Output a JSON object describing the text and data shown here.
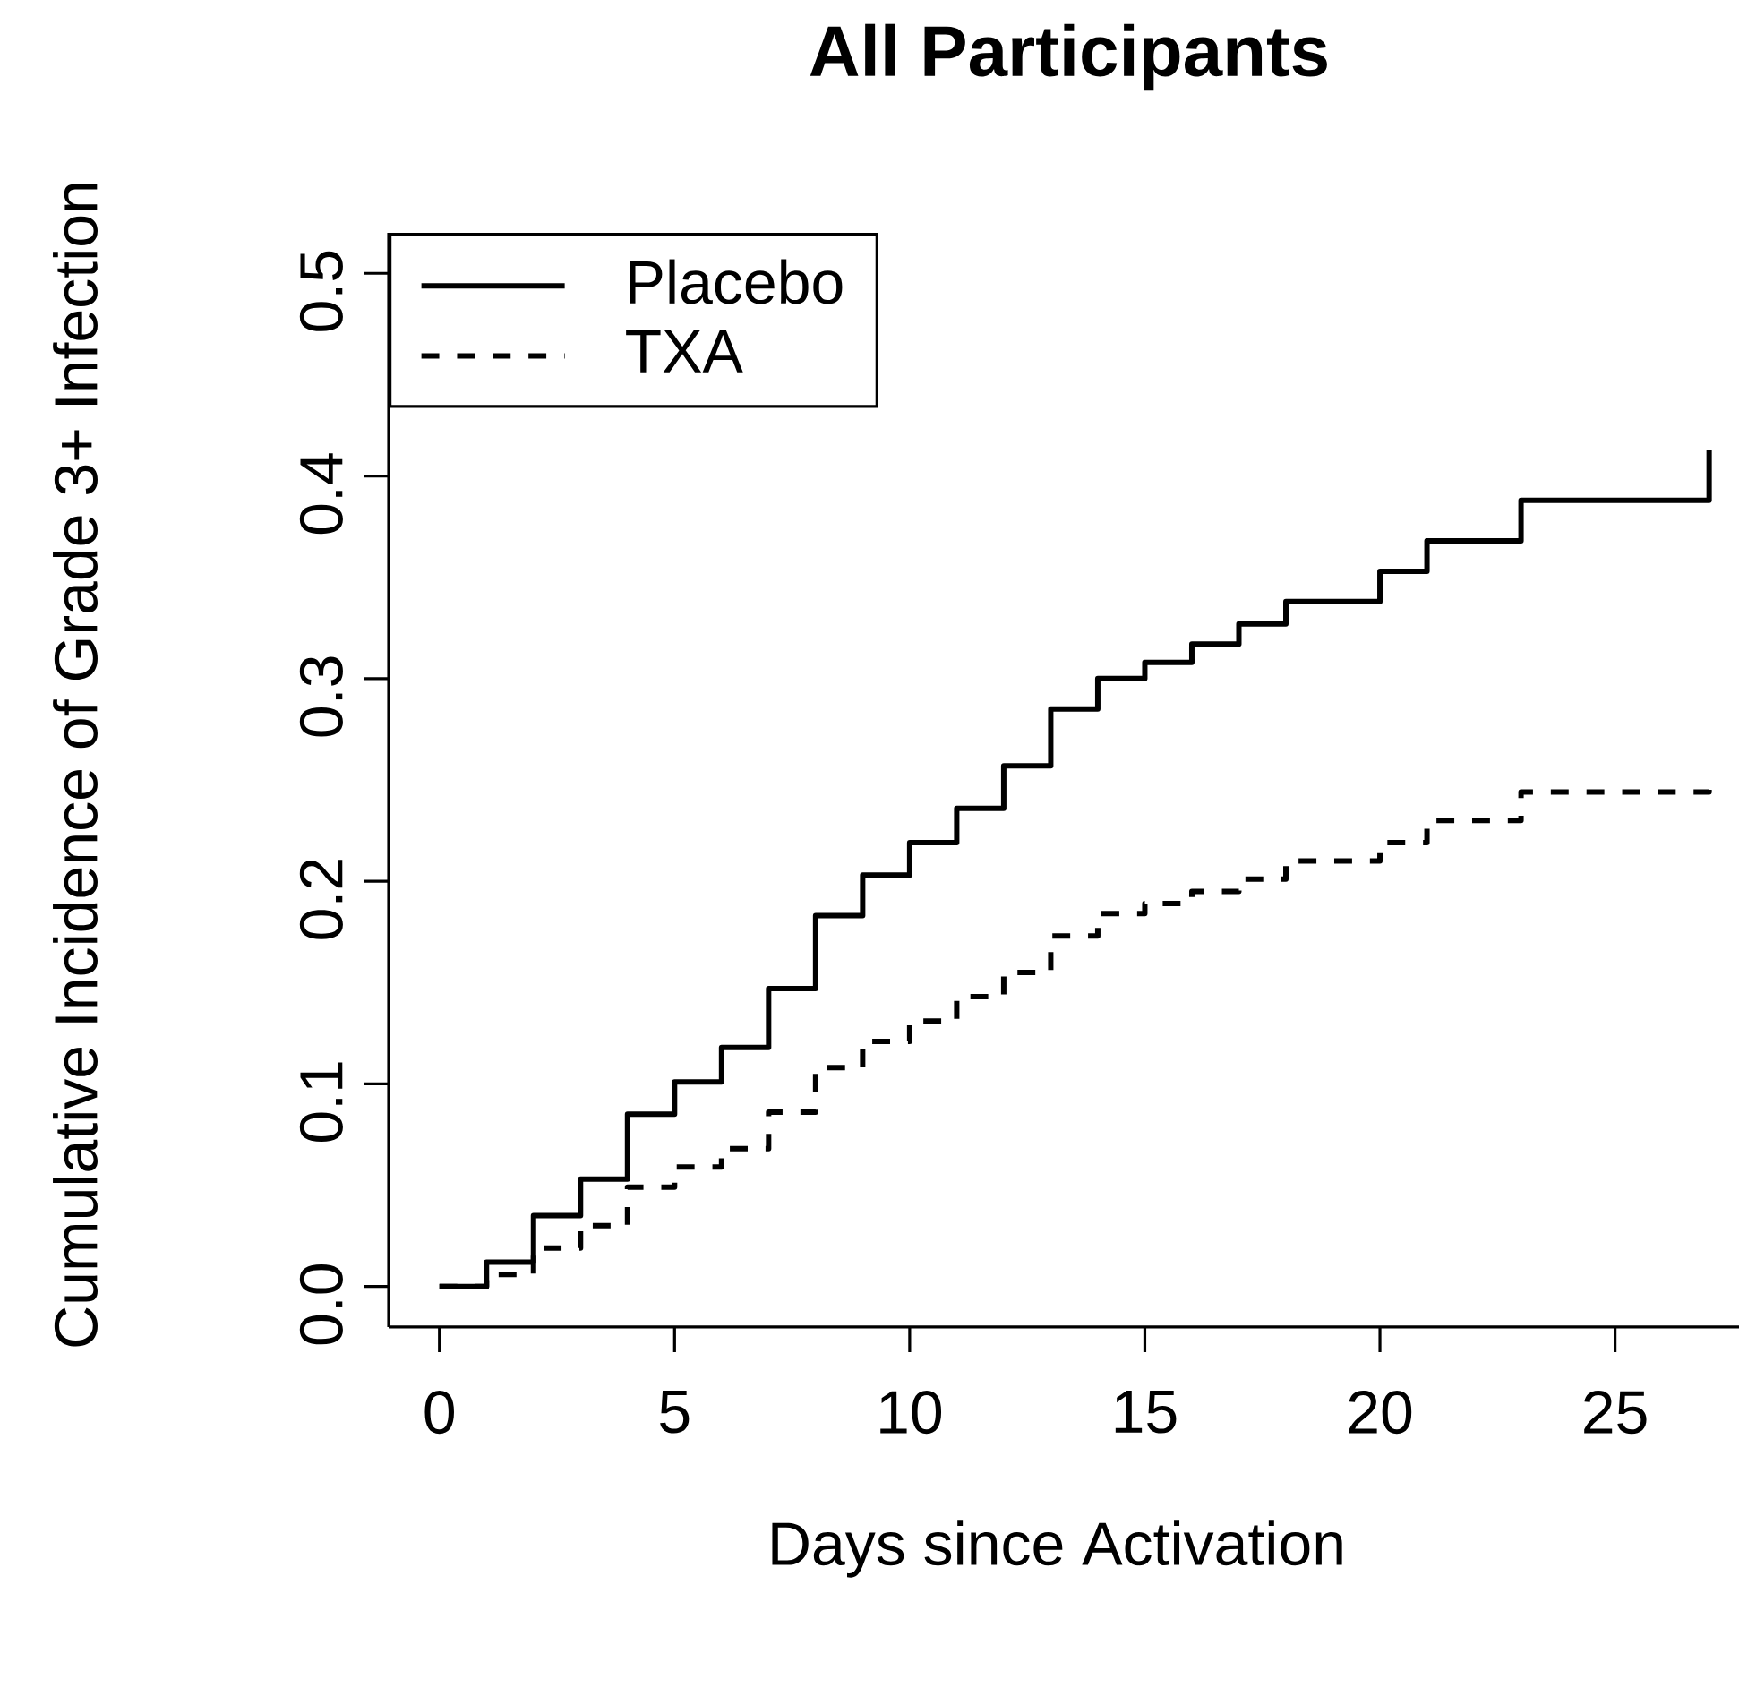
{
  "chart_data": {
    "type": "step",
    "title": "All Participants",
    "xlabel": "Days since Activation",
    "ylabel": "Cumulative Incidence of Grade 3+ Infection",
    "xlim": [
      -1.08,
      27.75
    ],
    "ylim": [
      -0.02,
      0.52
    ],
    "xticks": [
      0,
      5,
      10,
      15,
      20,
      25
    ],
    "yticks": [
      {
        "value": 0,
        "label": "0.0"
      },
      0.1,
      0.2,
      0.3,
      0.4,
      0.5
    ],
    "legend": "top left",
    "series": [
      {
        "name": "Placebo",
        "color": "#000000",
        "line_style": "solid",
        "x": [
          0,
          1,
          2,
          3,
          4,
          5,
          6,
          7,
          8,
          9,
          10,
          11,
          12,
          13,
          14,
          15,
          16,
          17,
          18,
          20,
          21,
          23,
          27
        ],
        "values": [
          0,
          0.012,
          0.035,
          0.053,
          0.085,
          0.101,
          0.118,
          0.147,
          0.183,
          0.203,
          0.219,
          0.236,
          0.257,
          0.285,
          0.3,
          0.308,
          0.317,
          0.327,
          0.338,
          0.353,
          0.368,
          0.388,
          0.413
        ]
      },
      {
        "name": "TXA",
        "color": "#000000",
        "line_style": "dashed",
        "x": [
          0,
          1,
          2,
          3,
          4,
          5,
          6,
          7,
          8,
          9,
          10,
          11,
          12,
          13,
          14,
          15,
          16,
          17,
          18,
          20,
          21,
          23,
          27
        ],
        "values": [
          0,
          0.006,
          0.019,
          0.03,
          0.049,
          0.059,
          0.068,
          0.086,
          0.108,
          0.121,
          0.131,
          0.143,
          0.155,
          0.173,
          0.184,
          0.189,
          0.195,
          0.201,
          0.21,
          0.219,
          0.23,
          0.244,
          0.248
        ]
      }
    ]
  }
}
